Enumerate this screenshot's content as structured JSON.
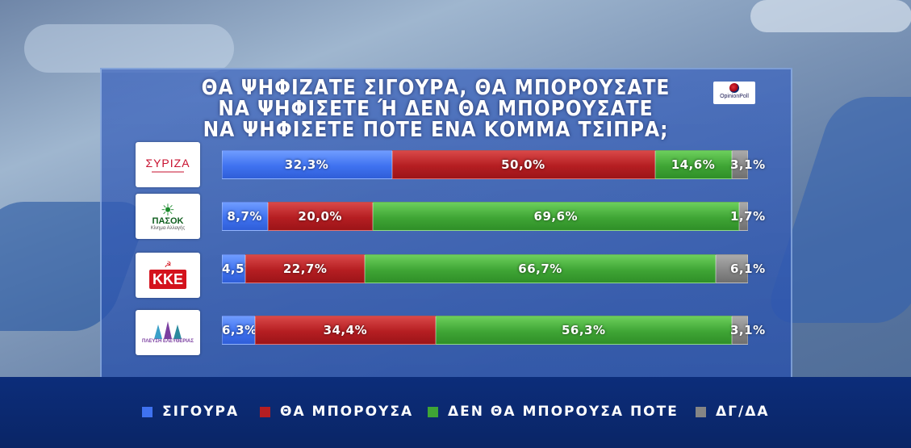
{
  "title_lines": [
    "ΘΑ ΨΗΦΙΖΑΤΕ ΣΙΓΟΥΡΑ, ΘΑ ΜΠΟΡΟΥΣΑΤΕ",
    "ΝΑ ΨΗΦΙΣΕΤΕ Ή ΔΕΝ ΘΑ ΜΠΟΡΟΥΣΑΤΕ",
    "ΝΑ ΨΗΦΙΣΕΤΕ ΠΟΤΕ ΕΝΑ ΚΟΜΜΑ ΤΣΙΠΡΑ;"
  ],
  "pollster": "OpinionPoll",
  "logos": {
    "syriza": "ΣΥΡΙΖΑ",
    "pasok": "ΠΑΣΟΚ",
    "pasok_sub": "Κίνημα Αλλαγής",
    "kke": "ΚΚΕ",
    "plefsi": "ΠΛΕΥΣΗ ΕΛΕΥΘΕΡΙΑΣ"
  },
  "colors": {
    "sigoura": "#3f72f0",
    "tha_mporousa": "#b51e22",
    "den_tha_mporousa": "#3fa535",
    "dg_da": "#858585"
  },
  "chart_data": {
    "type": "bar",
    "stacked": true,
    "orientation": "horizontal",
    "categories": [
      "ΣΥΡΙΖΑ",
      "ΠΑΣΟΚ",
      "ΚΚΕ",
      "ΠΛΕΥΣΗ ΕΛΕΥΘΕΡΙΑΣ"
    ],
    "series": [
      {
        "name": "ΣΙΓΟΥΡΑ",
        "values": [
          32.3,
          8.7,
          4.5,
          6.3
        ],
        "labels": [
          "32,3%",
          "8,7%",
          "4,5%",
          "6,3%"
        ]
      },
      {
        "name": "ΘΑ ΜΠΟΡΟΥΣΑ",
        "values": [
          50.0,
          20.0,
          22.7,
          34.4
        ],
        "labels": [
          "50,0%",
          "20,0%",
          "22,7%",
          "34,4%"
        ]
      },
      {
        "name": "ΔΕΝ ΘΑ ΜΠΟΡΟΥΣΑ ΠΟΤΕ",
        "values": [
          14.6,
          69.6,
          66.7,
          56.3
        ],
        "labels": [
          "14,6%",
          "69,6%",
          "66,7%",
          "56,3%"
        ]
      },
      {
        "name": "ΔΓ/ΔΑ",
        "values": [
          3.1,
          1.7,
          6.1,
          3.1
        ],
        "labels": [
          "3,1%",
          "1,7%",
          "6,1%",
          "3,1%"
        ]
      }
    ],
    "xlim": [
      0,
      100
    ],
    "legend_position": "bottom"
  }
}
